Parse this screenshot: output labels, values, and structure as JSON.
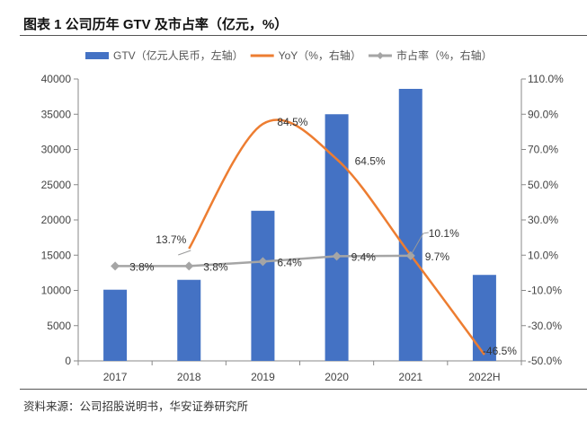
{
  "title": "图表 1  公司历年 GTV 及市占率（亿元，%）",
  "source": "资料来源：公司招股说明书，华安证券研究所",
  "chart_data": {
    "type": "bar+line",
    "categories": [
      "2017",
      "2018",
      "2019",
      "2020",
      "2021",
      "2022H"
    ],
    "left_axis": {
      "range": [
        0,
        40000
      ],
      "ticks": [
        0,
        5000,
        10000,
        15000,
        20000,
        25000,
        30000,
        35000,
        40000
      ],
      "tick_labels": [
        "0",
        "5000",
        "10000",
        "15000",
        "20000",
        "25000",
        "30000",
        "35000",
        "40000"
      ]
    },
    "right_axis": {
      "range": [
        -50,
        110
      ],
      "ticks": [
        -50,
        -30,
        -10,
        10,
        30,
        50,
        70,
        90,
        110
      ],
      "tick_labels": [
        "-50.0%",
        "-30.0%",
        "-10.0%",
        "10.0%",
        "30.0%",
        "50.0%",
        "70.0%",
        "90.0%",
        "110.0%"
      ]
    },
    "grid": false,
    "legend_position": "top",
    "series": [
      {
        "name": "GTV（亿元人民币，左轴）",
        "kind": "bar",
        "axis": "left",
        "color": "#4472C4",
        "values": [
          10100,
          11500,
          21300,
          35000,
          38600,
          12200
        ]
      },
      {
        "name": "YoY（%，右轴）",
        "kind": "smooth-line",
        "axis": "right",
        "color": "#ED7D31",
        "values": [
          null,
          13.7,
          84.5,
          64.5,
          10.1,
          -46.5
        ],
        "labels": [
          "",
          "13.7%",
          "84.5%",
          "64.5%",
          "10.1%",
          "-46.5%"
        ]
      },
      {
        "name": "市占率（%，右轴）",
        "kind": "line-marker",
        "axis": "right",
        "color": "#A5A5A5",
        "values": [
          3.8,
          3.8,
          6.4,
          9.4,
          9.7,
          null
        ],
        "labels": [
          "3.8%",
          "3.8%",
          "6.4%",
          "9.4%",
          "9.7%",
          ""
        ]
      }
    ]
  }
}
